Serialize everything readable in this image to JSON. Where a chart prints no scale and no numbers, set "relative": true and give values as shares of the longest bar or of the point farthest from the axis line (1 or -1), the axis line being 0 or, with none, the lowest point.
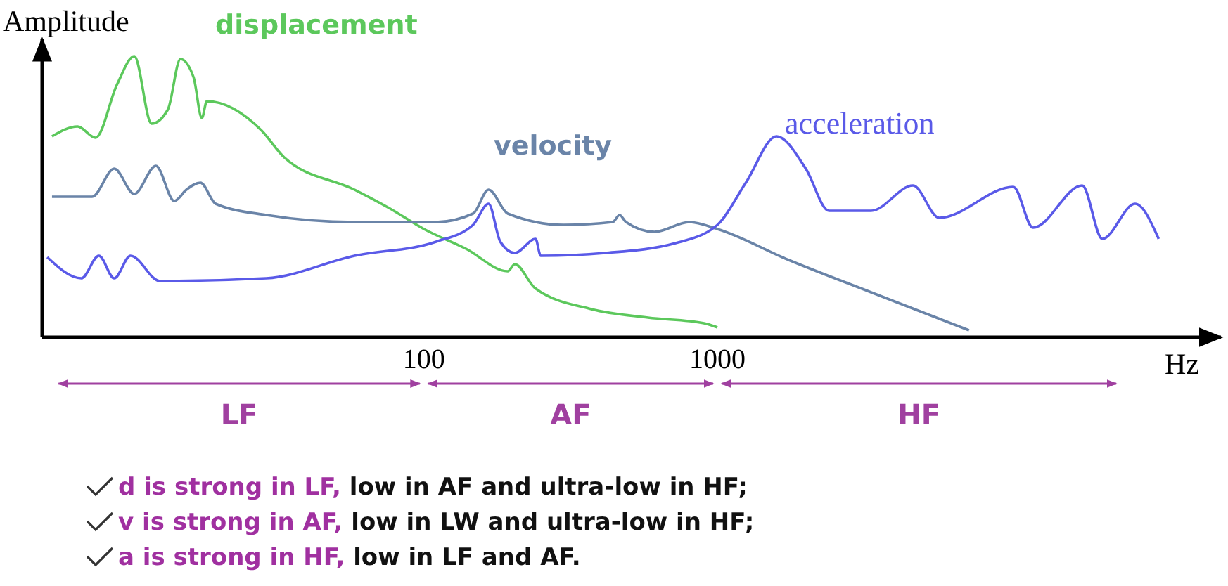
{
  "chart_data": {
    "type": "line",
    "relative": true,
    "xlabel": "Hz",
    "ylabel": "Amplitude",
    "log": "x",
    "xlim": [
      5,
      52000
    ],
    "xticks": [
      100,
      1000
    ],
    "grid": false,
    "marker": "none",
    "line_style": "solid",
    "series": [
      {
        "name": "displacement",
        "color": "#5cc85c",
        "x": [
          5.4,
          6.6,
          7.6,
          9.0,
          10.3,
          11.8,
          13.4,
          14.8,
          16.4,
          17.5,
          18.2,
          28,
          33.4,
          58,
          76,
          100,
          139,
          193,
          204,
          239,
          372,
          580,
          900,
          1000
        ],
        "values": [
          0.715,
          0.75,
          0.71,
          0.9,
          1.0,
          0.76,
          0.81,
          0.99,
          0.925,
          0.78,
          0.84,
          0.735,
          0.64,
          0.525,
          0.46,
          0.385,
          0.315,
          0.235,
          0.26,
          0.175,
          0.1,
          0.07,
          0.05,
          0.035
        ]
      },
      {
        "name": "velocity",
        "color": "#6a84a8",
        "x": [
          5.4,
          7.4,
          8.8,
          10.3,
          12.2,
          14.1,
          15.5,
          17.3,
          19.5,
          29,
          58,
          110,
          147,
          166,
          193,
          299,
          440,
          464,
          488,
          610,
          803,
          1000,
          1750,
          3340,
          7200
        ],
        "values": [
          0.5,
          0.5,
          0.6,
          0.51,
          0.61,
          0.485,
          0.525,
          0.55,
          0.475,
          0.435,
          0.41,
          0.41,
          0.44,
          0.525,
          0.44,
          0.4,
          0.41,
          0.435,
          0.41,
          0.375,
          0.41,
          0.385,
          0.275,
          0.16,
          0.025
        ]
      },
      {
        "name": "acceleration",
        "color": "#5a5ae8",
        "x": [
          5.2,
          6.8,
          7.8,
          8.8,
          10.0,
          12.6,
          29,
          58,
          110,
          147,
          166,
          182,
          204,
          240,
          250,
          415,
          720,
          1000,
          1250,
          1590,
          2000,
          2400,
          3340,
          4640,
          5700,
          10200,
          11900,
          17500,
          20500,
          26500,
          31900
        ],
        "values": [
          0.285,
          0.21,
          0.29,
          0.21,
          0.29,
          0.2,
          0.21,
          0.29,
          0.34,
          0.4,
          0.475,
          0.34,
          0.3,
          0.35,
          0.29,
          0.3,
          0.335,
          0.4,
          0.55,
          0.715,
          0.6,
          0.45,
          0.45,
          0.54,
          0.425,
          0.535,
          0.39,
          0.54,
          0.35,
          0.475,
          0.35
        ]
      }
    ],
    "annotations": [
      "LF",
      "AF",
      "HF",
      "d is strong in LF, low in AF and ultra-low in HF;",
      "v is strong in AF, low in LW and ultra-low in HF;",
      "a is strong in HF, low in LF and AF."
    ]
  }
}
